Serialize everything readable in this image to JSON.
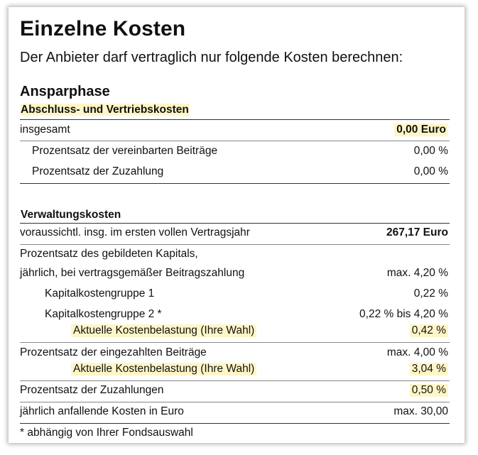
{
  "title": "Einzelne Kosten",
  "intro": "Der Anbieter darf vertraglich nur folgende Kosten berechnen:",
  "phase": "Ansparphase",
  "abschluss": {
    "heading": "Abschluss- und Vertriebskosten",
    "rows": [
      {
        "label": "insgesamt",
        "value": "0,00 Euro"
      },
      {
        "label": "Prozentsatz der vereinbarten Beiträge",
        "value": "0,00 %"
      },
      {
        "label": "Prozentsatz der Zuzahlung",
        "value": "0,00 %"
      }
    ]
  },
  "verwaltung": {
    "heading": "Verwaltungskosten",
    "rows": [
      {
        "label": "voraussichtl. insg. im ersten vollen Vertragsjahr",
        "value": "267,17 Euro"
      },
      {
        "label": "Prozentsatz des gebildeten Kapitals,",
        "value": ""
      },
      {
        "label": "jährlich, bei vertragsgemäßer Beitragszahlung",
        "value": "max. 4,20 %"
      },
      {
        "label": "Kapitalkostengruppe 1",
        "value": "0,22 %"
      },
      {
        "label": "Kapitalkostengruppe 2 *",
        "value": "0,22 % bis 4,20 %"
      },
      {
        "label": "Aktuelle Kostenbelastung (Ihre Wahl)",
        "value": "0,42 %"
      },
      {
        "label": "Prozentsatz der eingezahlten Beiträge",
        "value": "max. 4,00 %"
      },
      {
        "label": "Aktuelle Kostenbelastung (Ihre Wahl)",
        "value": "3,04 %"
      },
      {
        "label": "Prozentsatz der Zuzahlungen",
        "value": "0,50 %"
      },
      {
        "label": "jährlich anfallende Kosten in Euro",
        "value": "max. 30,00"
      }
    ]
  },
  "footnote": "* abhängig von Ihrer Fondsauswahl",
  "colors": {
    "highlight": "#fff6c7",
    "text": "#111111",
    "rule": "#333333"
  }
}
